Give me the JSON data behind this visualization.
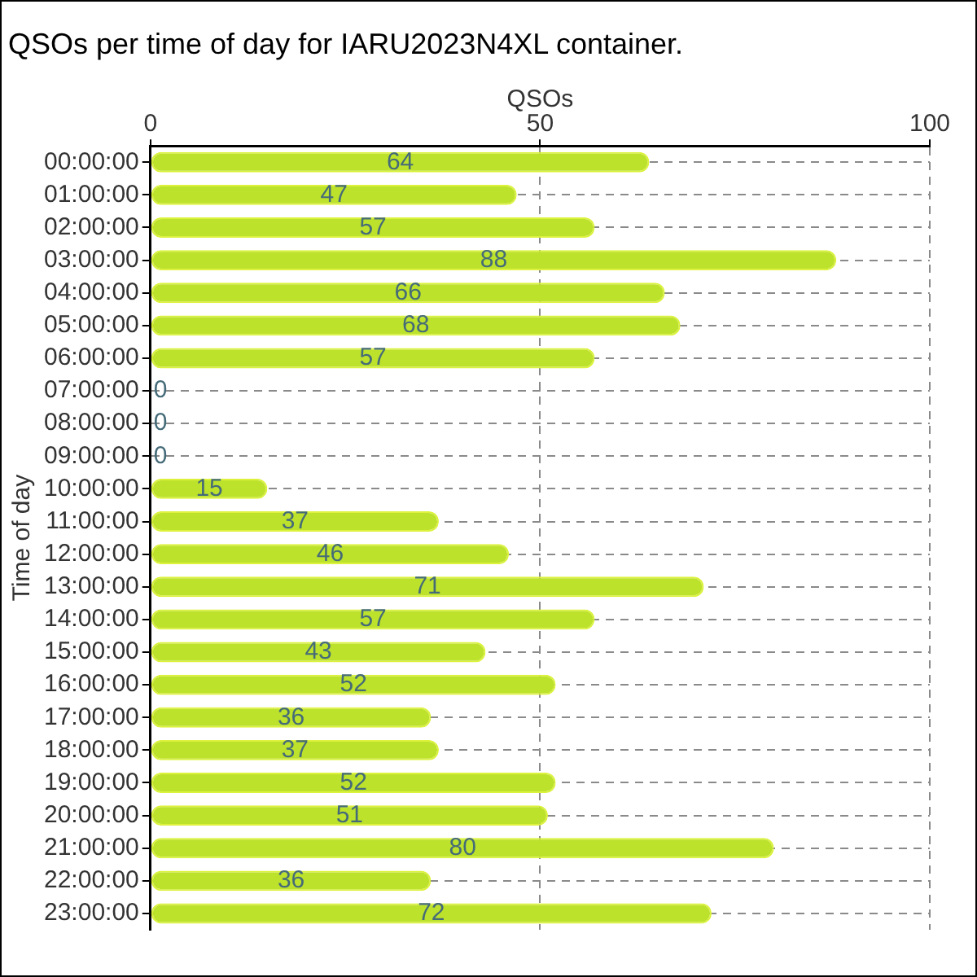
{
  "chart_data": {
    "type": "bar",
    "orientation": "horizontal",
    "title": "QSOs per time of day for IARU2023N4XL container.",
    "xlabel": "QSOs",
    "ylabel": "Time of day",
    "categories": [
      "00:00:00",
      "01:00:00",
      "02:00:00",
      "03:00:00",
      "04:00:00",
      "05:00:00",
      "06:00:00",
      "07:00:00",
      "08:00:00",
      "09:00:00",
      "10:00:00",
      "11:00:00",
      "12:00:00",
      "13:00:00",
      "14:00:00",
      "15:00:00",
      "16:00:00",
      "17:00:00",
      "18:00:00",
      "19:00:00",
      "20:00:00",
      "21:00:00",
      "22:00:00",
      "23:00:00"
    ],
    "values": [
      64,
      47,
      57,
      88,
      66,
      68,
      57,
      0,
      0,
      0,
      15,
      37,
      46,
      71,
      57,
      43,
      52,
      36,
      37,
      52,
      51,
      80,
      36,
      72
    ],
    "color": "#bde22c",
    "xlim": [
      0,
      100
    ],
    "xticks": [
      0,
      50,
      100
    ],
    "grid": true,
    "data_labels": true,
    "legend": false
  }
}
